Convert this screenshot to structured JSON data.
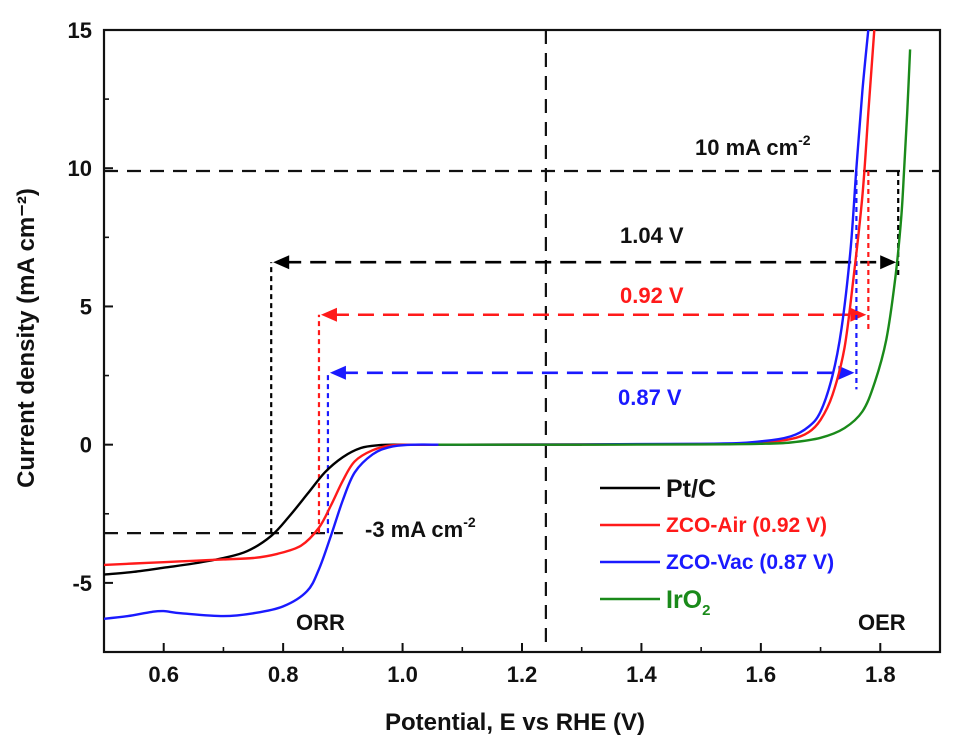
{
  "chart_data": {
    "type": "line",
    "xlabel": "Potential, E vs RHE (V)",
    "ylabel": "Current density (mA cm⁻²)",
    "xlim": [
      0.5,
      1.9
    ],
    "ylim": [
      -7.5,
      15
    ],
    "x_ticks": [
      "0.6",
      "0.8",
      "1.0",
      "1.2",
      "1.4",
      "1.6",
      "1.8"
    ],
    "y_ticks": [
      "-5",
      "0",
      "5",
      "10",
      "15"
    ],
    "colors": {
      "Pt/C": "#000000",
      "ZCO-Air": "#ff1a1a",
      "ZCO-Vac": "#1a1aff",
      "IrO2": "#1a8a1a"
    },
    "series": [
      {
        "legend": "Pt/C",
        "color": "#000000",
        "points": [
          [
            0.5,
            -4.7
          ],
          [
            0.55,
            -4.6
          ],
          [
            0.6,
            -4.45
          ],
          [
            0.65,
            -4.3
          ],
          [
            0.7,
            -4.1
          ],
          [
            0.74,
            -3.85
          ],
          [
            0.78,
            -3.3
          ],
          [
            0.81,
            -2.6
          ],
          [
            0.84,
            -1.8
          ],
          [
            0.87,
            -1.0
          ],
          [
            0.9,
            -0.45
          ],
          [
            0.93,
            -0.12
          ],
          [
            0.96,
            -0.02
          ],
          [
            1.0,
            0.0
          ],
          [
            1.2,
            0.0
          ],
          [
            1.3,
            0.0
          ]
        ]
      },
      {
        "legend": "ZCO-Air (0.92 V)",
        "color": "#ff1a1a",
        "points": [
          [
            0.5,
            -4.35
          ],
          [
            0.55,
            -4.3
          ],
          [
            0.6,
            -4.25
          ],
          [
            0.65,
            -4.2
          ],
          [
            0.7,
            -4.15
          ],
          [
            0.75,
            -4.1
          ],
          [
            0.79,
            -3.95
          ],
          [
            0.83,
            -3.65
          ],
          [
            0.86,
            -3.0
          ],
          [
            0.88,
            -2.2
          ],
          [
            0.9,
            -1.3
          ],
          [
            0.92,
            -0.6
          ],
          [
            0.95,
            -0.2
          ],
          [
            0.98,
            -0.03
          ],
          [
            1.02,
            0.0
          ],
          [
            1.1,
            0.0
          ],
          [
            1.5,
            0.02
          ],
          [
            1.6,
            0.08
          ],
          [
            1.65,
            0.2
          ],
          [
            1.68,
            0.45
          ],
          [
            1.7,
            0.9
          ],
          [
            1.72,
            1.8
          ],
          [
            1.74,
            3.5
          ],
          [
            1.755,
            6.0
          ],
          [
            1.77,
            9.0
          ],
          [
            1.78,
            12.0
          ],
          [
            1.79,
            15.0
          ]
        ]
      },
      {
        "legend": "ZCO-Vac (0.87 V)",
        "color": "#1a1aff",
        "points": [
          [
            0.5,
            -6.3
          ],
          [
            0.54,
            -6.2
          ],
          [
            0.58,
            -6.05
          ],
          [
            0.6,
            -6.02
          ],
          [
            0.63,
            -6.1
          ],
          [
            0.7,
            -6.2
          ],
          [
            0.75,
            -6.1
          ],
          [
            0.8,
            -5.85
          ],
          [
            0.84,
            -5.3
          ],
          [
            0.86,
            -4.5
          ],
          [
            0.88,
            -3.3
          ],
          [
            0.9,
            -2.0
          ],
          [
            0.92,
            -1.0
          ],
          [
            0.95,
            -0.35
          ],
          [
            0.98,
            -0.08
          ],
          [
            1.02,
            0.0
          ],
          [
            1.1,
            0.0
          ],
          [
            1.5,
            0.03
          ],
          [
            1.6,
            0.12
          ],
          [
            1.65,
            0.3
          ],
          [
            1.68,
            0.65
          ],
          [
            1.7,
            1.2
          ],
          [
            1.72,
            2.5
          ],
          [
            1.735,
            4.2
          ],
          [
            1.75,
            7.0
          ],
          [
            1.76,
            10.0
          ],
          [
            1.77,
            12.8
          ],
          [
            1.78,
            15.0
          ]
        ]
      },
      {
        "legend": "IrO2",
        "color": "#1a8a1a",
        "points": [
          [
            1.06,
            0.0
          ],
          [
            1.3,
            0.0
          ],
          [
            1.5,
            0.01
          ],
          [
            1.6,
            0.03
          ],
          [
            1.65,
            0.08
          ],
          [
            1.7,
            0.25
          ],
          [
            1.74,
            0.6
          ],
          [
            1.77,
            1.2
          ],
          [
            1.79,
            2.2
          ],
          [
            1.81,
            3.8
          ],
          [
            1.825,
            6.0
          ],
          [
            1.835,
            8.2
          ],
          [
            1.84,
            10.0
          ],
          [
            1.845,
            12.0
          ],
          [
            1.85,
            14.3
          ]
        ]
      }
    ],
    "annotations": {
      "ten_label": "10 mA cm",
      "ten_sup": "-2",
      "minus3_label": "-3 mA cm",
      "minus3_sup": "-2",
      "gap_black": "1.04 V",
      "gap_red": "0.92 V",
      "gap_blue": "0.87 V",
      "orr": "ORR",
      "oer": "OER"
    },
    "reference_lines": {
      "y_ten": 9.9,
      "y_minus3": -3.2,
      "x_divider": 1.24
    },
    "gaps": [
      {
        "color": "#000000",
        "x1": 0.78,
        "x2": 1.83,
        "y": 6.6,
        "y_low": -3.2,
        "y_high": 9.9
      },
      {
        "color": "#ff1a1a",
        "x1": 0.86,
        "x2": 1.78,
        "y": 4.7,
        "y_low": -3.2,
        "y_high": 9.9
      },
      {
        "color": "#1a1aff",
        "x1": 0.875,
        "x2": 1.76,
        "y": 2.6,
        "y_low": -3.2,
        "y_high": 9.9
      }
    ],
    "legend": {
      "placement": "bottom-right",
      "items": [
        {
          "label": "Pt/C",
          "sub": "",
          "color": "#000000"
        },
        {
          "label": "ZCO-Air (0.92 V)",
          "sub": "",
          "color": "#ff1a1a"
        },
        {
          "label": "ZCO-Vac (0.87 V)",
          "sub": "",
          "color": "#1a1aff"
        },
        {
          "label": "IrO",
          "sub": "2",
          "color": "#1a8a1a"
        }
      ]
    }
  }
}
